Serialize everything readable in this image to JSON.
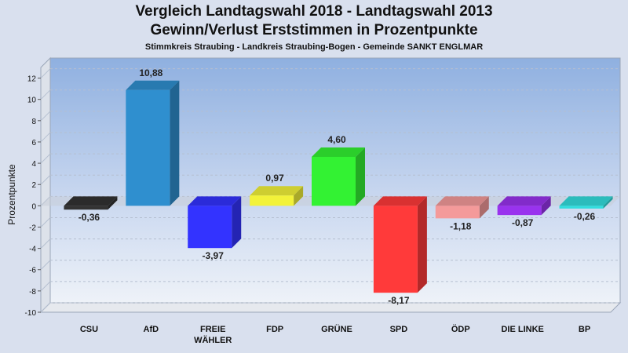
{
  "chart_data": {
    "type": "bar",
    "title": "Vergleich Landtagswahl 2018 - Landtagswahl 2013",
    "subtitle_line": "Gewinn/Verlust Erststimmen in Prozentpunkte",
    "caption": "Stimmkreis Straubing - Landkreis Straubing-Bogen - Gemeinde SANKT ENGLMAR",
    "ylabel": "Prozentpunkte",
    "xlabel": "",
    "ylim": [
      -10,
      13
    ],
    "yticks": [
      12,
      10,
      8,
      6,
      4,
      2,
      0,
      -2,
      -4,
      -6,
      -8,
      -10
    ],
    "grid": true,
    "categories": [
      {
        "label": [
          "CSU"
        ],
        "value": -0.36,
        "value_label": "-0,36",
        "color": "#333333"
      },
      {
        "label": [
          "AfD"
        ],
        "value": 10.88,
        "value_label": "10,88",
        "color": "#2f8fcf"
      },
      {
        "label": [
          "FREIE",
          "WÄHLER"
        ],
        "value": -3.97,
        "value_label": "-3,97",
        "color": "#3333ff"
      },
      {
        "label": [
          "FDP"
        ],
        "value": 0.97,
        "value_label": "0,97",
        "color": "#f2f23a"
      },
      {
        "label": [
          "GRÜNE"
        ],
        "value": 4.6,
        "value_label": "4,60",
        "color": "#33f233"
      },
      {
        "label": [
          "SPD"
        ],
        "value": -8.17,
        "value_label": "-8,17",
        "color": "#ff3a3a"
      },
      {
        "label": [
          "ÖDP"
        ],
        "value": -1.18,
        "value_label": "-1,18",
        "color": "#f49a9a"
      },
      {
        "label": [
          "DIE LINKE"
        ],
        "value": -0.87,
        "value_label": "-0,87",
        "color": "#9933ee"
      },
      {
        "label": [
          "BP"
        ],
        "value": -0.26,
        "value_label": "-0,26",
        "color": "#33dddd"
      }
    ]
  }
}
